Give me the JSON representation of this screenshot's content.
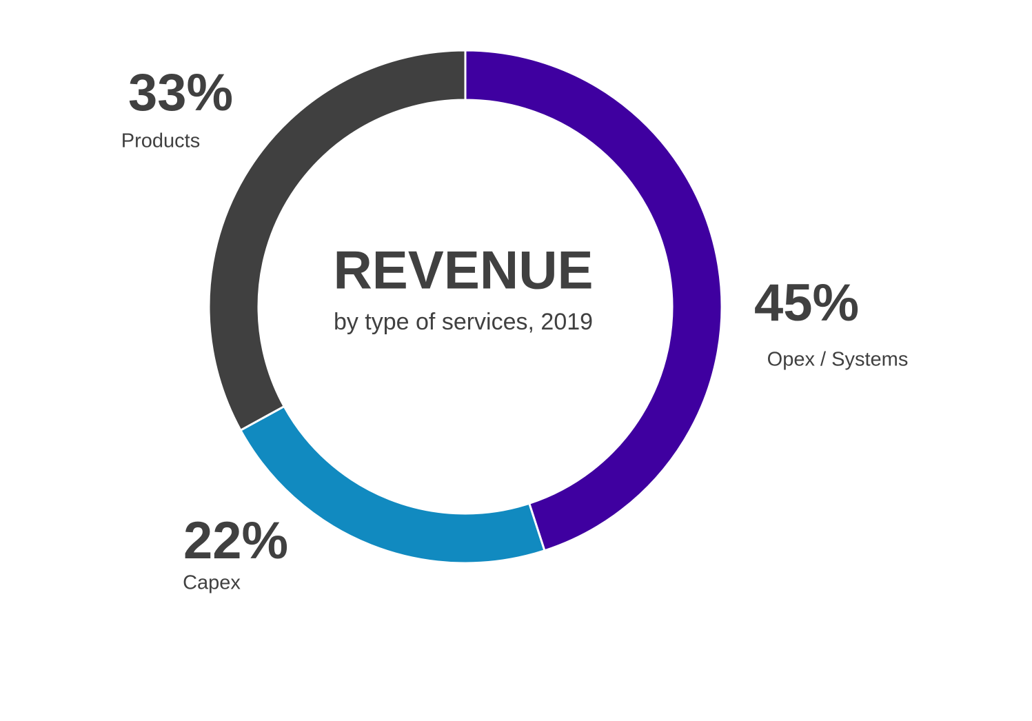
{
  "chart_data": {
    "type": "donut",
    "title": "REVENUE",
    "subtitle": "by type of services, 2019",
    "categories": [
      "Opex / Systems",
      "Capex",
      "Products"
    ],
    "values": [
      45,
      22,
      33
    ],
    "value_labels": [
      "45%",
      "22%",
      "33%"
    ],
    "colors": [
      "#3f00a0",
      "#118ac0",
      "#404040"
    ]
  }
}
